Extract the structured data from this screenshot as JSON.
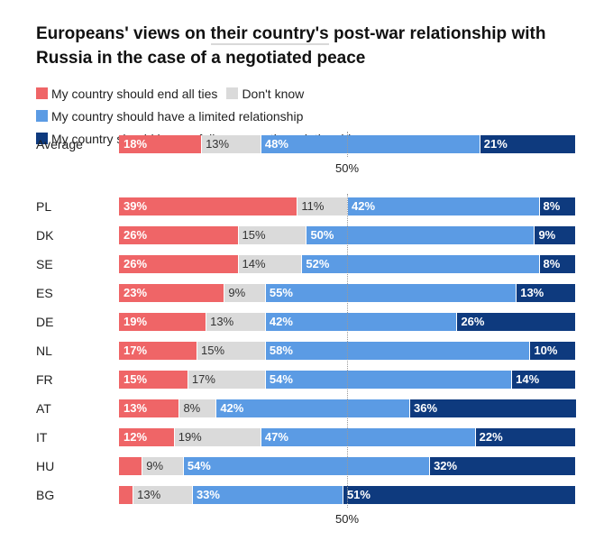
{
  "chart_data": {
    "type": "bar",
    "orientation": "horizontal",
    "stacked": true,
    "percent_stacked": true,
    "title": "Europeans' views on their country's post-war relationship with Russia in the case of a negotiated peace",
    "title_parts": [
      "Europeans' views on ",
      "their country's",
      " post-war relationship with Russia in the case of a negotiated peace"
    ],
    "legend_position": "top",
    "legend": [
      {
        "name": "My country should end all ties",
        "color": "#ef6567"
      },
      {
        "name": "Don't know",
        "color": "#dadada"
      },
      {
        "name": "My country should have a limited relationship",
        "color": "#5b9be4"
      },
      {
        "name": "My country should have a fully cooperative relationship",
        "color": "#0e3a7e"
      }
    ],
    "reference_line": {
      "value": 50,
      "label": "50%"
    },
    "categories": [
      "Average",
      "PL",
      "DK",
      "SE",
      "ES",
      "DE",
      "NL",
      "FR",
      "AT",
      "IT",
      "HU",
      "BG"
    ],
    "series": [
      {
        "name": "My country should end all ties",
        "values": [
          18,
          39,
          26,
          26,
          23,
          19,
          17,
          15,
          13,
          12,
          5,
          3
        ],
        "labels": [
          "18%",
          "39%",
          "26%",
          "26%",
          "23%",
          "19%",
          "17%",
          "15%",
          "13%",
          "12%",
          "",
          ""
        ]
      },
      {
        "name": "Don't know",
        "values": [
          13,
          11,
          15,
          14,
          9,
          13,
          15,
          17,
          8,
          19,
          9,
          13
        ],
        "labels": [
          "13%",
          "11%",
          "15%",
          "14%",
          "9%",
          "13%",
          "15%",
          "17%",
          "8%",
          "19%",
          "9%",
          "13%"
        ]
      },
      {
        "name": "My country should have a limited relationship",
        "values": [
          48,
          42,
          50,
          52,
          55,
          42,
          58,
          54,
          42,
          47,
          54,
          33
        ],
        "labels": [
          "48%",
          "42%",
          "50%",
          "52%",
          "55%",
          "42%",
          "58%",
          "54%",
          "42%",
          "47%",
          "54%",
          "33%"
        ]
      },
      {
        "name": "My country should have a fully cooperative relationship",
        "values": [
          21,
          8,
          9,
          8,
          13,
          26,
          10,
          14,
          36,
          22,
          32,
          51
        ],
        "labels": [
          "21%",
          "8%",
          "9%",
          "8%",
          "13%",
          "26%",
          "10%",
          "14%",
          "36%",
          "22%",
          "32%",
          "51%"
        ]
      }
    ],
    "xlim": [
      0,
      100
    ]
  }
}
